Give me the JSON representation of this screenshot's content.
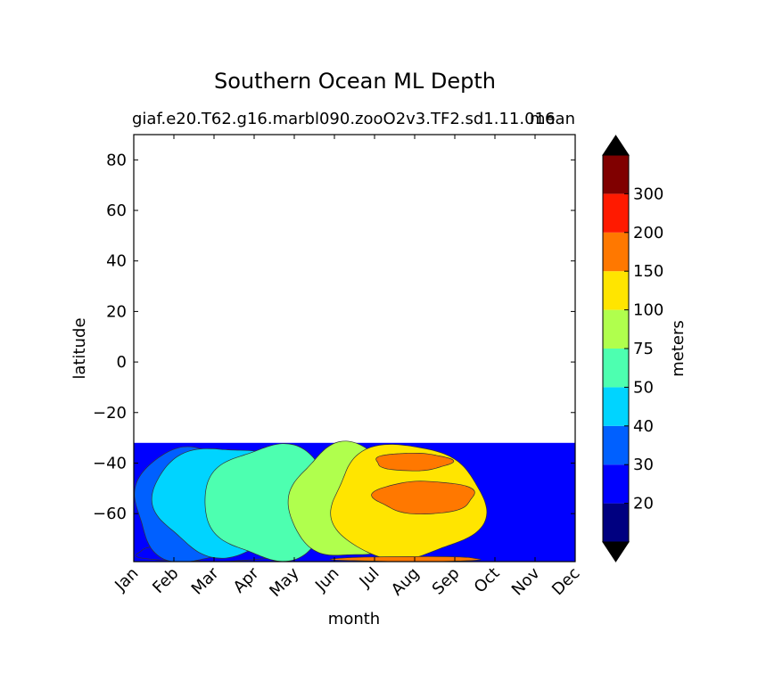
{
  "chart_data": {
    "type": "heatmap",
    "title": "Southern Ocean ML Depth",
    "subtitle_left": "giaf.e20.T62.g16.marbl090.zooO2v3.TF2.sd1.11.016",
    "subtitle_right": "mean",
    "xlabel": "month",
    "ylabel": "latitude",
    "x_categories": [
      "Jan",
      "Feb",
      "Mar",
      "Apr",
      "May",
      "Jun",
      "Jul",
      "Aug",
      "Sep",
      "Oct",
      "Nov",
      "Dec"
    ],
    "xlim": [
      0.5,
      11.5
    ],
    "y_ticks": [
      80,
      60,
      40,
      20,
      0,
      -20,
      -40,
      -60
    ],
    "ylim": [
      -79,
      90
    ],
    "data_lat_range": [
      -79,
      -32
    ],
    "colorbar": {
      "label": "meters",
      "extend": "both",
      "tick_labels": [
        "20",
        "30",
        "40",
        "50",
        "75",
        "100",
        "150",
        "200",
        "300"
      ],
      "levels": [
        10,
        20,
        30,
        40,
        50,
        75,
        100,
        150,
        200,
        300,
        400
      ],
      "colors": [
        "#000080",
        "#0000ff",
        "#0060ff",
        "#00d4ff",
        "#4dffb0",
        "#b0ff4d",
        "#ffe500",
        "#ff7800",
        "#ff1a00",
        "#800000"
      ],
      "under_color": "#000000",
      "over_color": "#000000"
    },
    "contour_regions": [
      {
        "level": 20,
        "month": [
          0.5,
          4.3
        ],
        "lat": [
          -79,
          -72
        ]
      },
      {
        "level": 30,
        "month": [
          0.5,
          3.5
        ],
        "lat": [
          -79,
          -34
        ]
      },
      {
        "level": 40,
        "month": [
          1.0,
          4.5
        ],
        "lat": [
          -76,
          -33
        ]
      },
      {
        "level": 50,
        "month": [
          2.3,
          5.5
        ],
        "lat": [
          -78,
          -33
        ]
      },
      {
        "level": 75,
        "month": [
          4.4,
          7.2
        ],
        "lat": [
          -78,
          -33
        ]
      },
      {
        "level": 100,
        "month": [
          5.4,
          9.2
        ],
        "lat": [
          -78,
          -33
        ]
      },
      {
        "level": 150,
        "month": [
          6.5,
          8.4
        ],
        "lat": [
          -43,
          -36
        ]
      },
      {
        "level": 150,
        "month": [
          6.5,
          9.0
        ],
        "lat": [
          -60,
          -47
        ]
      },
      {
        "level": 150,
        "month": [
          5.5,
          9.2
        ],
        "lat": [
          -79,
          -77
        ]
      }
    ]
  }
}
